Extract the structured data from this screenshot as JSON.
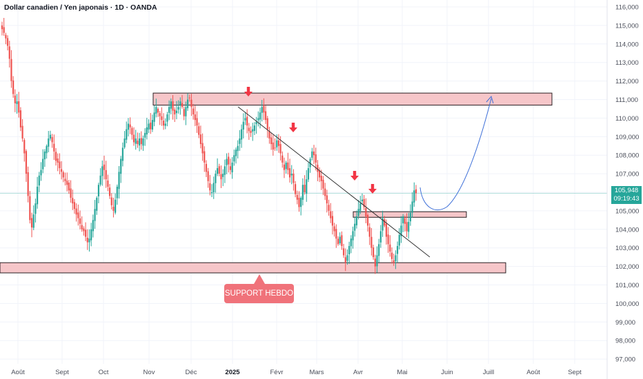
{
  "title": "Dollar canadien / Yen japonais · 1D · OANDA",
  "price_badge": {
    "price": "105,948",
    "countdown": "09:19:43"
  },
  "annotation": "SUPPORT HEBDO",
  "colors": {
    "up": "#26a69a",
    "down": "#ef5350",
    "zone_fill": "#f6c6c9",
    "zone_border": "#2a1f22",
    "arrow": "#f23645",
    "projection": "#3d6fd8",
    "trendline": "#333333",
    "grid": "#f0f3fa",
    "axis_text": "#4a4e5a"
  },
  "chart_data": {
    "type": "candlestick",
    "symbol": "CADJPY",
    "timeframe": "1D",
    "y_axis_labels": [
      "116,000",
      "115,000",
      "114,000",
      "113,000",
      "112,000",
      "111,000",
      "110,000",
      "109,000",
      "108,000",
      "107,000",
      "106,000",
      "105,000",
      "104,000",
      "103,000",
      "102,000",
      "101,000",
      "100,000",
      "99,000",
      "98,000",
      "97,000"
    ],
    "ylim": [
      96.6,
      116.2
    ],
    "x_axis_labels": [
      "Août",
      "Sept",
      "Oct",
      "Nov",
      "Déc",
      "2025",
      "Févr",
      "Mars",
      "Avr",
      "Mai",
      "Juin",
      "Juill",
      "Août",
      "Sept"
    ],
    "x_axis_bold": [
      "2025"
    ],
    "last_price": 105.948,
    "closes": [
      114.8,
      114.6,
      114.3,
      113.9,
      113.2,
      112.0,
      111.3,
      110.8,
      110.9,
      110.3,
      109.5,
      108.9,
      108.1,
      107.0,
      105.8,
      104.5,
      104.1,
      104.8,
      105.4,
      106.3,
      106.9,
      107.2,
      107.8,
      108.2,
      108.5,
      108.9,
      109.1,
      108.7,
      108.2,
      107.7,
      107.6,
      107.3,
      107.1,
      106.8,
      106.6,
      106.4,
      106.1,
      105.7,
      105.4,
      105.1,
      104.8,
      104.6,
      104.3,
      104.0,
      103.9,
      103.6,
      103.3,
      103.5,
      104.0,
      104.5,
      105.1,
      105.7,
      106.4,
      106.9,
      107.4,
      107.2,
      106.7,
      106.3,
      105.8,
      105.3,
      105.0,
      105.6,
      106.3,
      107.1,
      107.8,
      108.4,
      108.9,
      109.4,
      109.7,
      109.5,
      109.1,
      108.7,
      108.9,
      108.6,
      108.9,
      108.6,
      108.9,
      109.2,
      109.5,
      109.7,
      109.4,
      109.9,
      110.3,
      110.6,
      110.3,
      110.1,
      109.9,
      109.6,
      109.7,
      110.2,
      110.6,
      110.9,
      110.4,
      110.2,
      110.4,
      110.6,
      110.9,
      110.6,
      110.1,
      110.6,
      111.0,
      111.1,
      110.6,
      110.2,
      109.9,
      109.6,
      109.1,
      108.6,
      108.1,
      107.6,
      107.1,
      106.6,
      106.1,
      106.0,
      106.5,
      107.0,
      107.3,
      107.0,
      106.7,
      107.0,
      107.4,
      107.8,
      107.5,
      107.2,
      107.6,
      108.0,
      108.3,
      108.5,
      108.9,
      109.4,
      109.8,
      110.0,
      109.6,
      109.3,
      109.2,
      109.4,
      109.6,
      109.8,
      110.0,
      110.3,
      110.6,
      110.3,
      109.9,
      109.4,
      108.9,
      108.6,
      108.3,
      108.4,
      108.8,
      108.5,
      108.1,
      107.6,
      107.2,
      107.6,
      107.2,
      106.8,
      107.0,
      106.5,
      105.9,
      105.6,
      105.2,
      105.7,
      106.4,
      106.0,
      106.7,
      107.3,
      107.8,
      108.2,
      108.0,
      107.6,
      107.1,
      106.8,
      106.6,
      106.2,
      105.8,
      105.4,
      105.0,
      104.6,
      104.2,
      103.9,
      103.5,
      103.2,
      103.6,
      103.1,
      102.6,
      102.2,
      102.6,
      103.1,
      103.5,
      103.9,
      104.3,
      104.7,
      105.1,
      105.4,
      105.6,
      105.2,
      104.7,
      104.2,
      103.6,
      103.0,
      102.5,
      102.0,
      102.6,
      103.2,
      103.9,
      104.6,
      104.2,
      103.6,
      103.2,
      102.8,
      102.4,
      102.2,
      102.6,
      103.1,
      103.7,
      104.2,
      104.7,
      104.3,
      103.9,
      104.4,
      104.9,
      105.5,
      106.1,
      105.95
    ]
  }
}
